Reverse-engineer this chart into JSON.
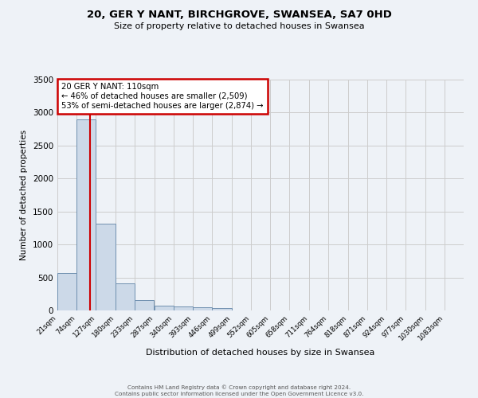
{
  "title_line1": "20, GER Y NANT, BIRCHGROVE, SWANSEA, SA7 0HD",
  "title_line2": "Size of property relative to detached houses in Swansea",
  "xlabel": "Distribution of detached houses by size in Swansea",
  "ylabel": "Number of detached properties",
  "bin_labels": [
    "21sqm",
    "74sqm",
    "127sqm",
    "180sqm",
    "233sqm",
    "287sqm",
    "340sqm",
    "393sqm",
    "446sqm",
    "499sqm",
    "552sqm",
    "605sqm",
    "658sqm",
    "711sqm",
    "764sqm",
    "818sqm",
    "871sqm",
    "924sqm",
    "977sqm",
    "1030sqm",
    "1083sqm"
  ],
  "bar_heights": [
    570,
    2900,
    1310,
    415,
    155,
    75,
    55,
    45,
    35,
    0,
    0,
    0,
    0,
    0,
    0,
    0,
    0,
    0,
    0,
    0,
    0
  ],
  "bar_color": "#ccd9e8",
  "bar_edge_color": "#7090b0",
  "ylim": [
    0,
    3500
  ],
  "yticks": [
    0,
    500,
    1000,
    1500,
    2000,
    2500,
    3000,
    3500
  ],
  "vline_color": "#cc0000",
  "vline_x": 110,
  "grid_color": "#cccccc",
  "background_color": "#eef2f7",
  "annotation_line1": "20 GER Y NANT: 110sqm",
  "annotation_line2": "← 46% of detached houses are smaller (2,509)",
  "annotation_line3": "53% of semi-detached houses are larger (2,874) →",
  "box_facecolor": "#ffffff",
  "box_edgecolor": "#cc0000",
  "footer_line1": "Contains HM Land Registry data © Crown copyright and database right 2024.",
  "footer_line2": "Contains public sector information licensed under the Open Government Licence v3.0.",
  "bin_edges": [
    21,
    74,
    127,
    180,
    233,
    287,
    340,
    393,
    446,
    499,
    552,
    605,
    658,
    711,
    764,
    818,
    871,
    924,
    977,
    1030,
    1083
  ]
}
